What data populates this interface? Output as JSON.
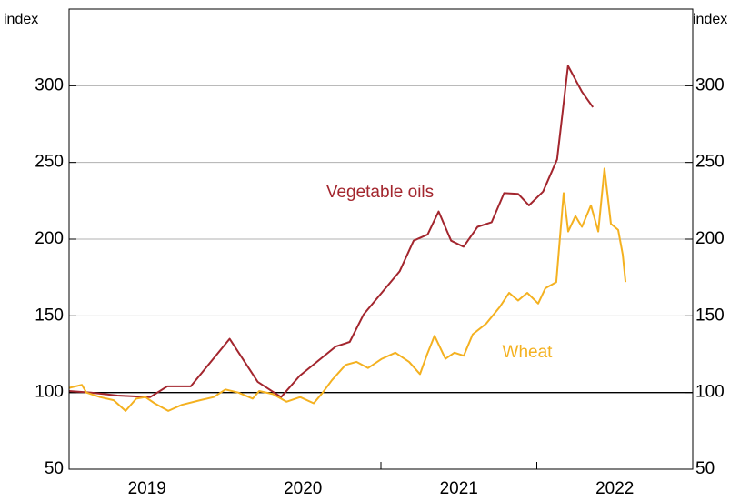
{
  "chart_data": {
    "type": "line",
    "ylabel": "index",
    "y2label": "index",
    "xlim": [
      2019,
      2023
    ],
    "ylim": [
      50,
      350
    ],
    "y2lim": [
      50,
      350
    ],
    "xticks": [
      {
        "value": 2019.5,
        "label": "2019"
      },
      {
        "value": 2020.5,
        "label": "2020"
      },
      {
        "value": 2021.5,
        "label": "2021"
      },
      {
        "value": 2022.5,
        "label": "2022"
      }
    ],
    "xminorticks": [
      2020,
      2021,
      2022
    ],
    "yticks": [
      50,
      100,
      150,
      200,
      250,
      300
    ],
    "y2ticks": [
      50,
      100,
      150,
      200,
      250,
      300
    ],
    "grid": true,
    "hline": 100,
    "series": [
      {
        "name": "Vegetable oils",
        "color": "#a3262e",
        "x": [
          2019.0,
          2019.14,
          2019.31,
          2019.52,
          2019.63,
          2019.78,
          2020.03,
          2020.21,
          2020.36,
          2020.48,
          2020.71,
          2020.8,
          2020.89,
          2021.12,
          2021.21,
          2021.3,
          2021.37,
          2021.45,
          2021.53,
          2021.62,
          2021.71,
          2021.79,
          2021.88,
          2021.95,
          2022.04,
          2022.13,
          2022.2,
          2022.29,
          2022.36
        ],
        "values": [
          101,
          100,
          98,
          97,
          104,
          104,
          135,
          107,
          97,
          111,
          130,
          133,
          151,
          179,
          199,
          203,
          218,
          199,
          195,
          208,
          211,
          230,
          229.5,
          222,
          231,
          252,
          313,
          296,
          286
        ]
      },
      {
        "name": "Wheat",
        "color": "#f4b120",
        "x": [
          2019.0,
          2019.082,
          2019.111,
          2019.198,
          2019.286,
          2019.362,
          2019.431,
          2019.49,
          2019.548,
          2019.636,
          2019.723,
          2019.84,
          2019.927,
          2020.003,
          2020.085,
          2020.178,
          2020.219,
          2020.307,
          2020.394,
          2020.482,
          2020.569,
          2020.627,
          2020.685,
          2020.773,
          2020.843,
          2020.918,
          2021.006,
          2021.093,
          2021.181,
          2021.251,
          2021.297,
          2021.344,
          2021.414,
          2021.472,
          2021.531,
          2021.589,
          2021.676,
          2021.764,
          2021.822,
          2021.88,
          2021.939,
          2022.009,
          2022.055,
          2022.125,
          2022.172,
          2022.201,
          2022.248,
          2022.289,
          2022.347,
          2022.394,
          2022.434,
          2022.475,
          2022.522,
          2022.551,
          2022.569
        ],
        "values": [
          103,
          105,
          100,
          97,
          95,
          88,
          96,
          97,
          93,
          88,
          92,
          95,
          97,
          102,
          100,
          96,
          101,
          99,
          94,
          97,
          93,
          100,
          108,
          118,
          120,
          116,
          122,
          126,
          120,
          112,
          125,
          137,
          122,
          126,
          124,
          138,
          145,
          156,
          165,
          160,
          165,
          158,
          168,
          172,
          230,
          205,
          215,
          208,
          222,
          205,
          246,
          210,
          206,
          190,
          172
        ]
      }
    ]
  }
}
